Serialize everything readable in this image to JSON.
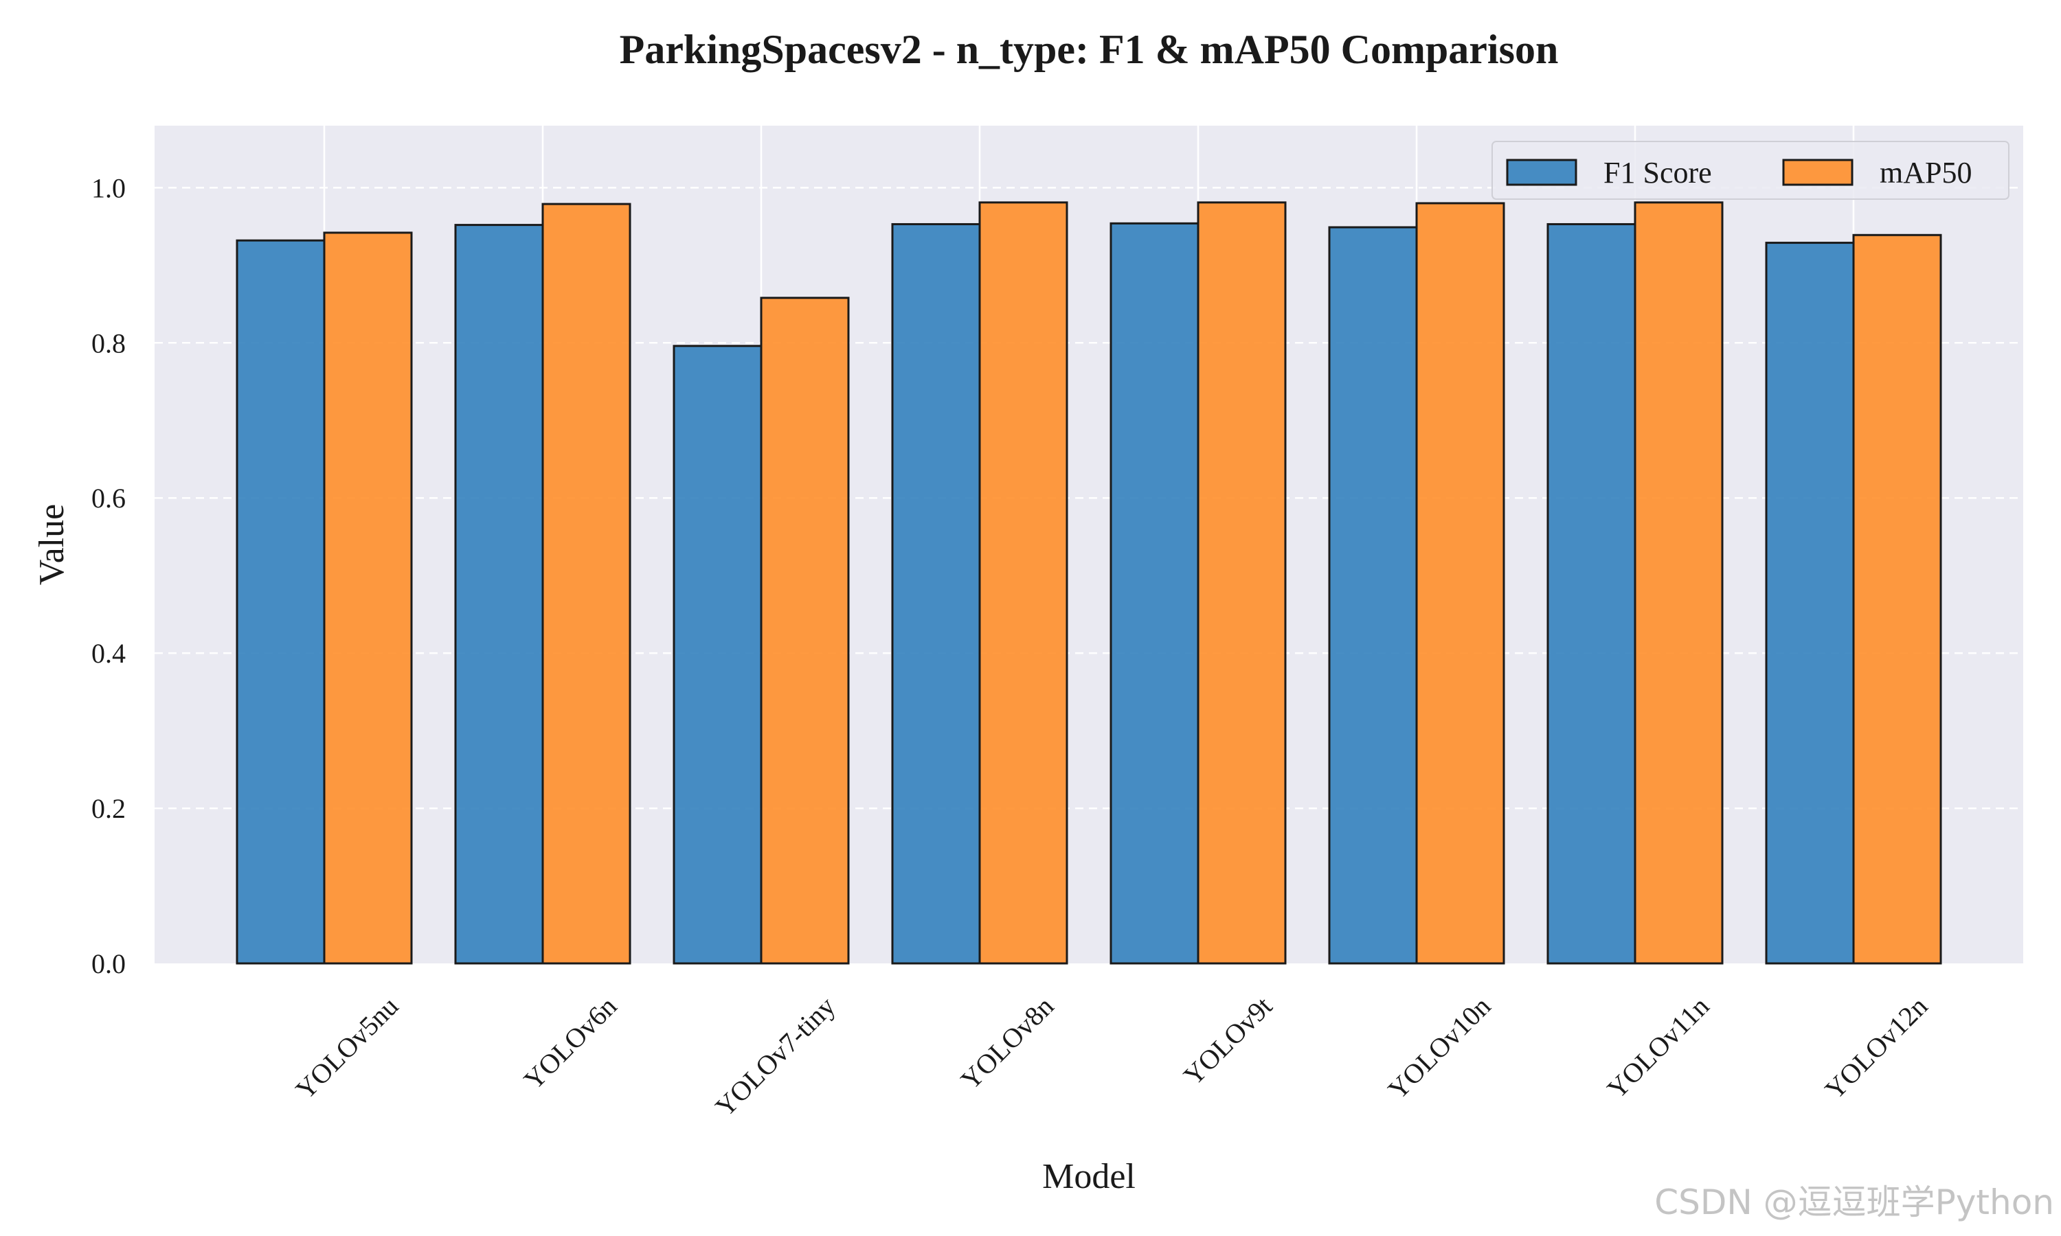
{
  "chart_data": {
    "type": "bar",
    "title": "ParkingSpacesv2 - n_type: F1 & mAP50 Comparison",
    "xlabel": "Model",
    "ylabel": "Value",
    "ylim": [
      0,
      1.08
    ],
    "yticks": [
      "0.0",
      "0.2",
      "0.4",
      "0.6",
      "0.8",
      "1.0"
    ],
    "grid": true,
    "legend_position": "top-right",
    "categories": [
      "YOLOv5nu",
      "YOLOv6n",
      "YOLOv7-tiny",
      "YOLOv8n",
      "YOLOv9t",
      "YOLOv10n",
      "YOLOv11n",
      "YOLOv12n"
    ],
    "series": [
      {
        "name": "F1 Score",
        "color": "#2f7ebc",
        "values": [
          0.932,
          0.952,
          0.796,
          0.953,
          0.954,
          0.949,
          0.953,
          0.929
        ]
      },
      {
        "name": "mAP50",
        "color": "#ff8c26",
        "values": [
          0.942,
          0.979,
          0.858,
          0.981,
          0.981,
          0.98,
          0.981,
          0.939
        ]
      }
    ]
  },
  "watermark": "CSDN @逗逗班学Python"
}
